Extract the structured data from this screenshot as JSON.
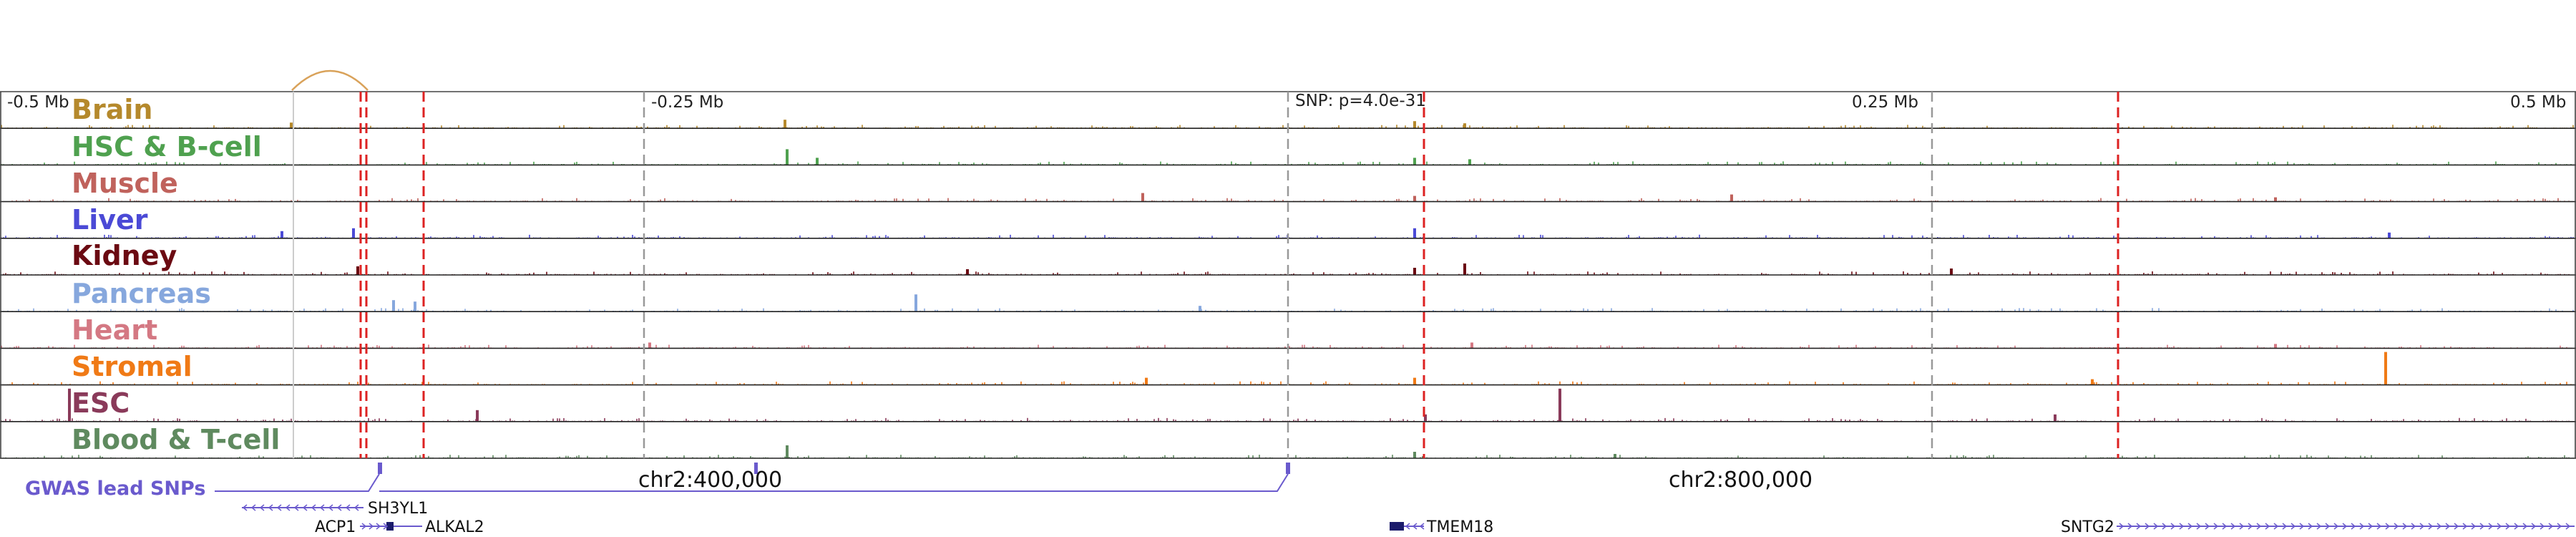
{
  "ruler": {
    "labels": [
      "-0.5 Mb",
      "-0.25 Mb",
      "SNP: p=4.0e-31",
      "0.25 Mb",
      "0.5 Mb"
    ]
  },
  "tracks": [
    {
      "name": "Brain",
      "color": "#b5892c"
    },
    {
      "name": "HSC & B-cell",
      "color": "#4fa14f"
    },
    {
      "name": "Muscle",
      "color": "#c0625c"
    },
    {
      "name": "Liver",
      "color": "#4b4ad6"
    },
    {
      "name": "Kidney",
      "color": "#6b0a12"
    },
    {
      "name": "Pancreas",
      "color": "#86a7dd"
    },
    {
      "name": "Heart",
      "color": "#d47883"
    },
    {
      "name": "Stromal",
      "color": "#f07a16"
    },
    {
      "name": "ESC",
      "color": "#8a3a5a"
    },
    {
      "name": "Blood & T-cell",
      "color": "#5f8a5f"
    }
  ],
  "gwas": {
    "label": "GWAS lead SNPs",
    "color": "#6a5acd"
  },
  "coordinates": [
    "chr2:400,000",
    "chr2:800,000"
  ],
  "genes": [
    {
      "name": "SH3YL1",
      "strand": "-"
    },
    {
      "name": "ACP1",
      "strand": "+"
    },
    {
      "name": "ALKAL2",
      "strand": "-"
    },
    {
      "name": "TMEM18",
      "strand": "-"
    },
    {
      "name": "SNTG2",
      "strand": "+"
    }
  ],
  "highlight_colors": {
    "red": "#dd2222",
    "gray": "#999999",
    "arc": "#d9a25a",
    "axis": "#222222"
  }
}
